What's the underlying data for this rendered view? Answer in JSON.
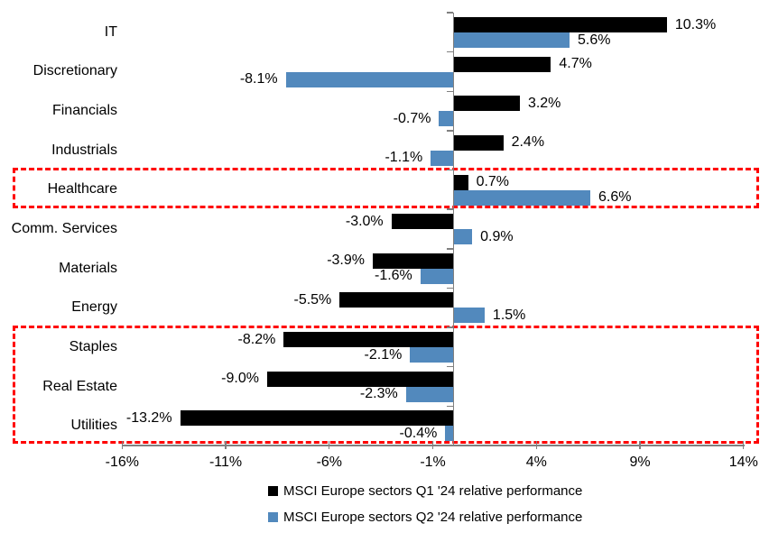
{
  "chart_data": {
    "type": "bar",
    "orientation": "horizontal",
    "categories": [
      "IT",
      "Discretionary",
      "Financials",
      "Industrials",
      "Healthcare",
      "Comm. Services",
      "Materials",
      "Energy",
      "Staples",
      "Real Estate",
      "Utilities"
    ],
    "series": [
      {
        "name": "MSCI Europe sectors Q1 '24 relative performance",
        "color": "#000000",
        "values": [
          10.3,
          4.7,
          3.2,
          2.4,
          0.7,
          -3.0,
          -3.9,
          -5.5,
          -8.2,
          -9.0,
          -13.2
        ]
      },
      {
        "name": "MSCI Europe sectors Q2 '24 relative performance",
        "color": "#5289BD",
        "values": [
          5.6,
          -8.1,
          -0.7,
          -1.1,
          6.6,
          0.9,
          -1.6,
          1.5,
          -2.1,
          -2.3,
          -0.4
        ]
      }
    ],
    "value_labels": {
      "q1": [
        "10.3%",
        "4.7%",
        "3.2%",
        "2.4%",
        "0.7%",
        "-3.0%",
        "-3.9%",
        "-5.5%",
        "-8.2%",
        "-9.0%",
        "-13.2%"
      ],
      "q2": [
        "5.6%",
        "-8.1%",
        "-0.7%",
        "-1.1%",
        "6.6%",
        "0.9%",
        "-1.6%",
        "1.5%",
        "-2.1%",
        "-2.3%",
        "-0.4%"
      ]
    },
    "x_tick_labels": [
      "-16%",
      "-11%",
      "-6%",
      "-1%",
      "4%",
      "9%",
      "14%"
    ],
    "x_tick_values": [
      -16,
      -11,
      -6,
      -1,
      4,
      9,
      14
    ],
    "xlim": [
      -16,
      14
    ],
    "grid": false,
    "legend_position": "bottom-center",
    "axis_color": "#808080",
    "highlight_color": "#FF0000",
    "highlights": [
      {
        "from": "Healthcare",
        "to": "Healthcare"
      },
      {
        "from": "Staples",
        "to": "Utilities"
      }
    ]
  }
}
